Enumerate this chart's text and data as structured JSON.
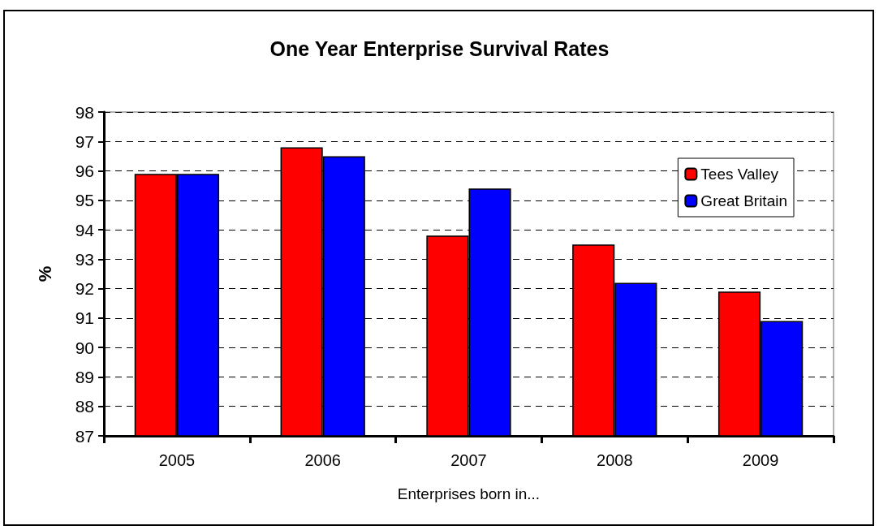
{
  "chart_data": {
    "type": "bar",
    "title": "One Year Enterprise Survival Rates",
    "xlabel": "Enterprises born in...",
    "ylabel": "%",
    "categories": [
      "2005",
      "2006",
      "2007",
      "2008",
      "2009"
    ],
    "series": [
      {
        "name": "Tees Valley",
        "color": "#ff0000",
        "values": [
          95.9,
          96.8,
          93.8,
          93.5,
          91.9
        ]
      },
      {
        "name": "Great Britain",
        "color": "#0000ff",
        "values": [
          95.9,
          96.5,
          95.4,
          92.2,
          90.9
        ]
      }
    ],
    "ylim": [
      87,
      98
    ],
    "yticks": [
      87,
      88,
      89,
      90,
      91,
      92,
      93,
      94,
      95,
      96,
      97,
      98
    ],
    "grid": "y",
    "legend": "top right"
  }
}
